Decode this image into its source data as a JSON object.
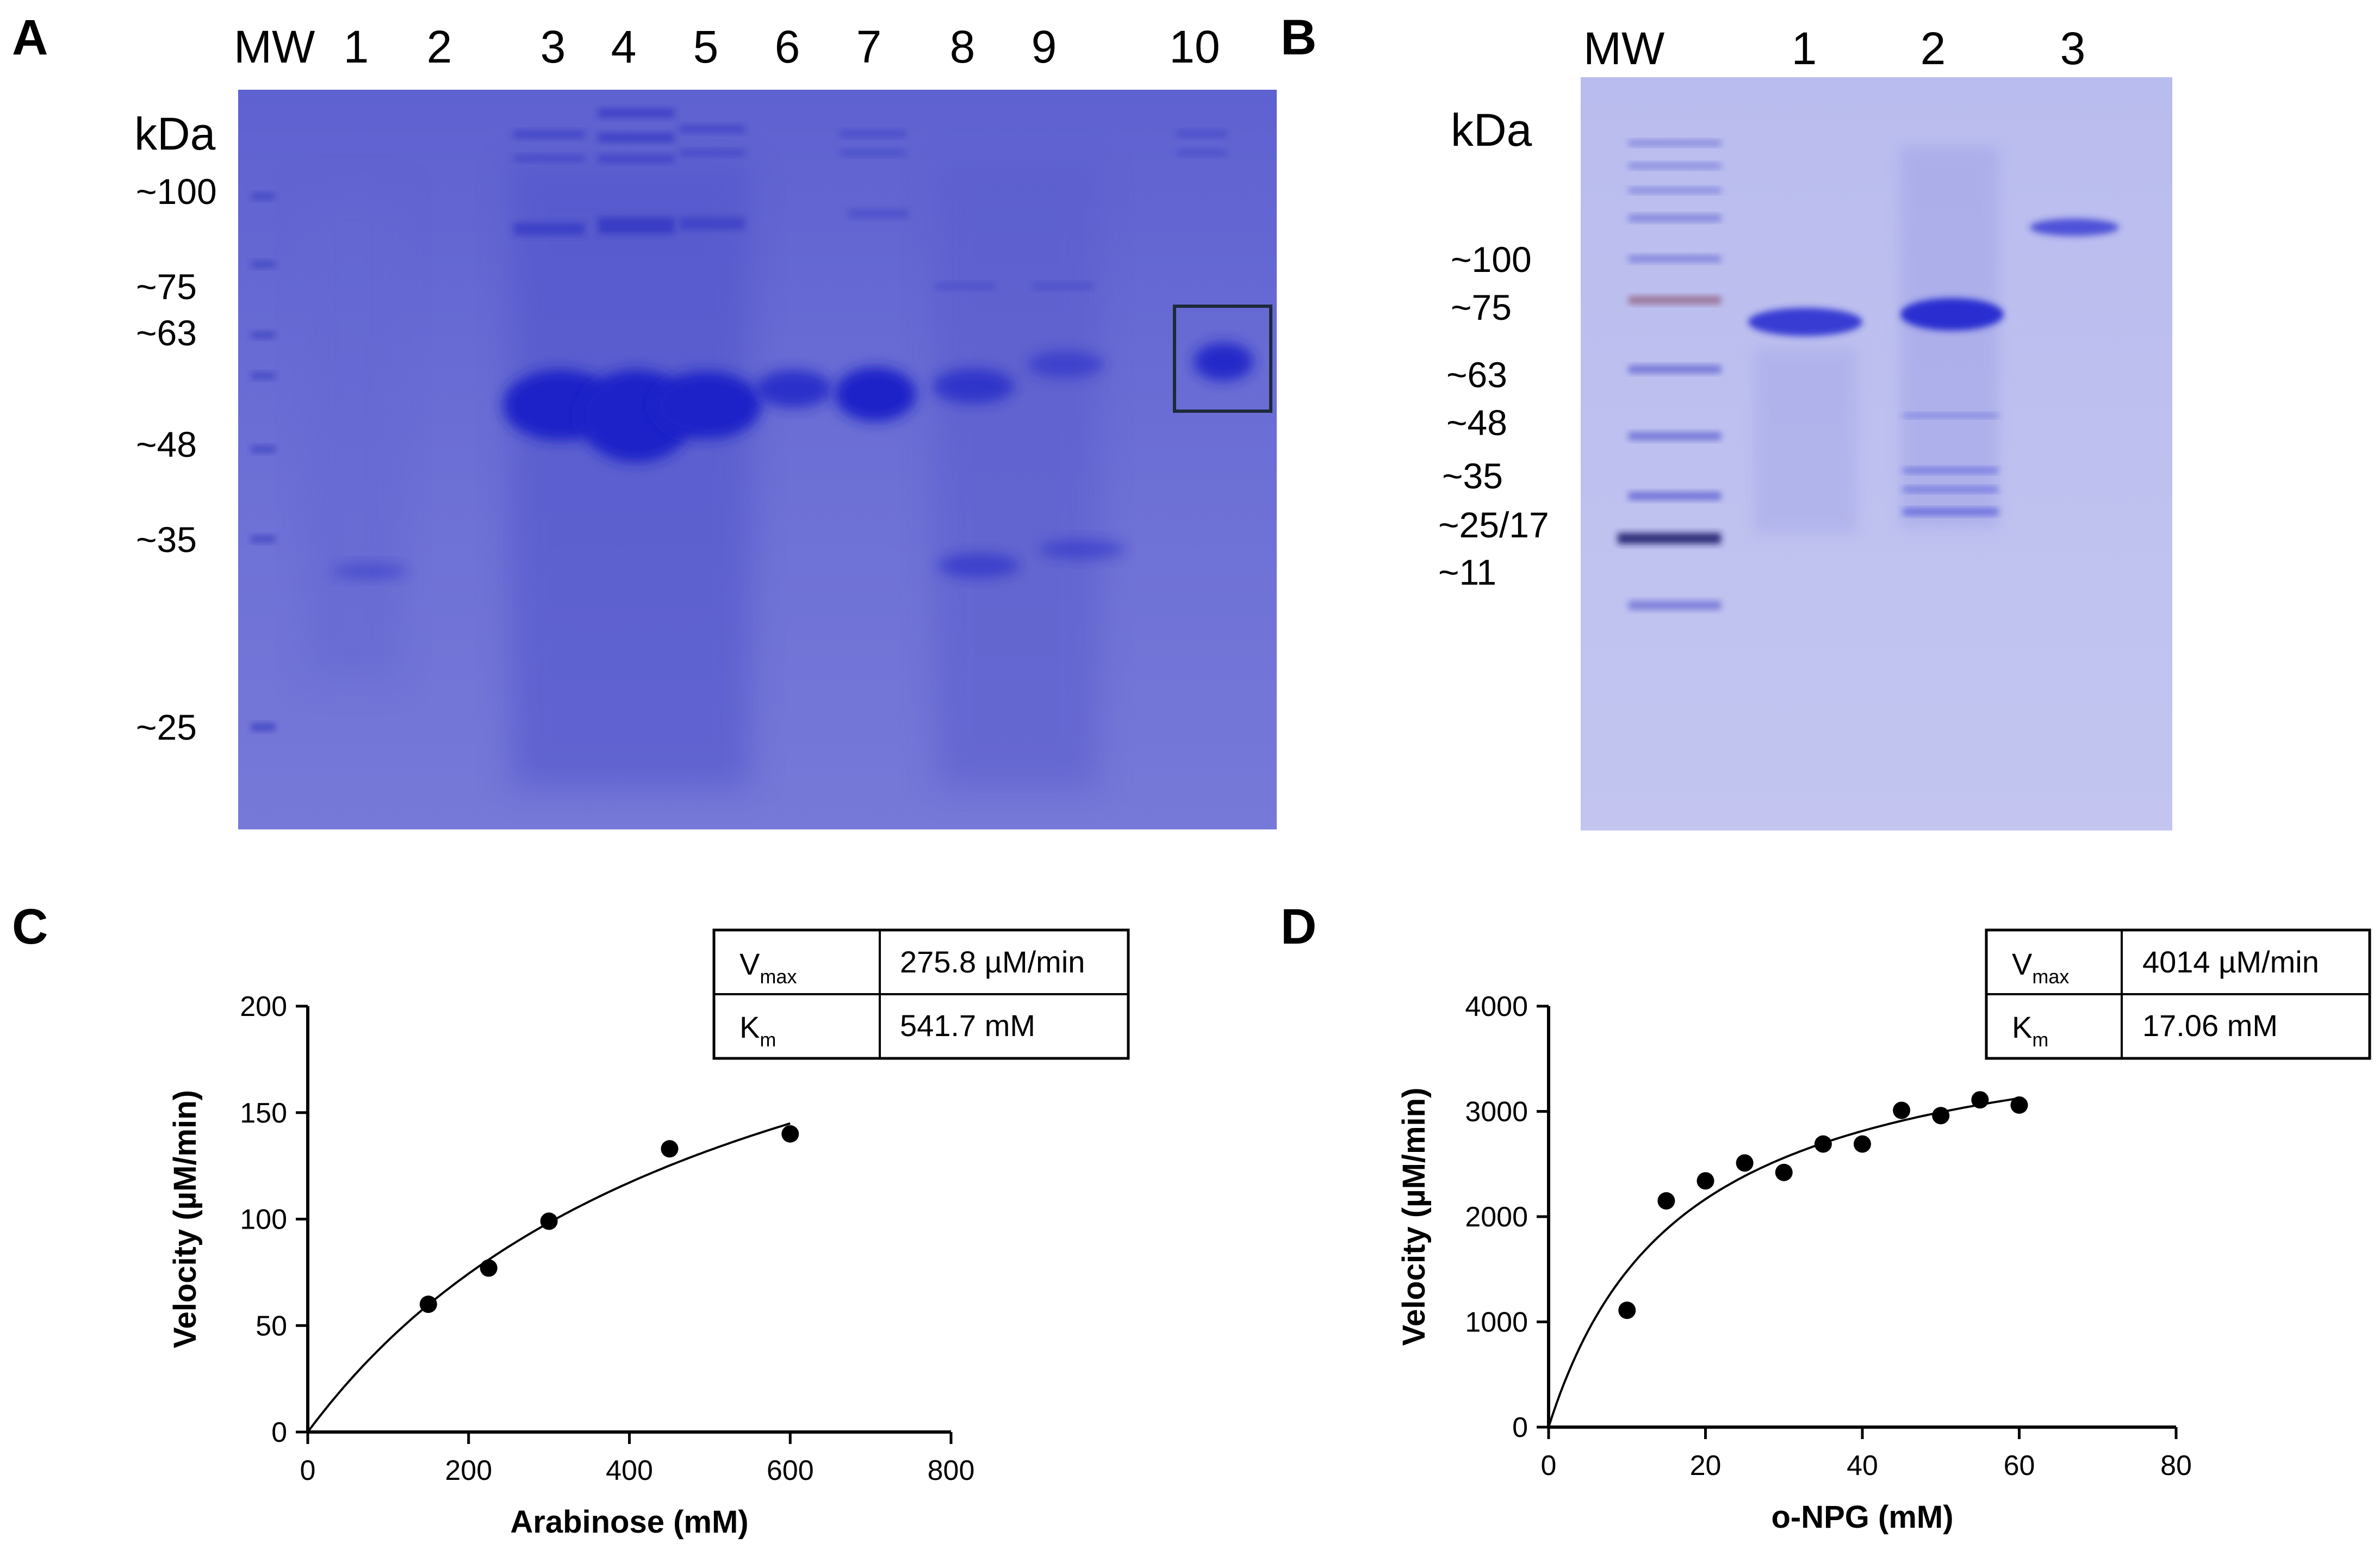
{
  "panels": {
    "A": {
      "letter": "A",
      "lane_labels": [
        "MW",
        "1",
        "2",
        "3",
        "4",
        "5",
        "6",
        "7",
        "8",
        "9",
        "10"
      ],
      "unit_label": "kDa",
      "mw_markers": [
        "~100",
        "~75",
        "~63",
        "~48",
        "~35",
        "~25"
      ]
    },
    "B": {
      "letter": "B",
      "lane_labels": [
        "MW",
        "1",
        "2",
        "3"
      ],
      "unit_label": "kDa",
      "mw_markers": [
        "~100",
        "~75",
        "~63",
        "~48",
        "~35",
        "~25/17",
        "~11"
      ]
    },
    "C": {
      "letter": "C"
    },
    "D": {
      "letter": "D"
    }
  },
  "chart_data": [
    {
      "panel": "C",
      "type": "scatter",
      "xlabel": "Arabinose (mM)",
      "ylabel": "Velocity (µM/min)",
      "xlim": [
        0,
        800
      ],
      "ylim": [
        0,
        200
      ],
      "xticks": [
        0,
        200,
        400,
        600,
        800
      ],
      "yticks": [
        0,
        50,
        100,
        150,
        200
      ],
      "grid": false,
      "x": [
        150,
        225,
        300,
        450,
        600
      ],
      "y": [
        60,
        77,
        99,
        133,
        140
      ],
      "fit": {
        "model": "michaelis-menten",
        "vmax": 275.8,
        "km": 541.7
      },
      "kinetics_table": [
        {
          "label": "V",
          "sub": "max",
          "value": "275.8 µM/min"
        },
        {
          "label": "K",
          "sub": "m",
          "value": "541.7 mM"
        }
      ]
    },
    {
      "panel": "D",
      "type": "scatter",
      "xlabel": "o-NPG (mM)",
      "ylabel": "Velocity (µM/min)",
      "xlim": [
        0,
        80
      ],
      "ylim": [
        0,
        4000
      ],
      "xticks": [
        0,
        20,
        40,
        60,
        80
      ],
      "yticks": [
        0,
        1000,
        2000,
        3000,
        4000
      ],
      "grid": false,
      "x": [
        10,
        15,
        20,
        25,
        30,
        35,
        40,
        45,
        50,
        55,
        60
      ],
      "y": [
        1110,
        2150,
        2340,
        2510,
        2420,
        2690,
        2690,
        3010,
        2960,
        3110,
        3060
      ],
      "fit": {
        "model": "michaelis-menten",
        "vmax": 4014,
        "km": 17.06
      },
      "kinetics_table": [
        {
          "label": "V",
          "sub": "max",
          "value": "4014 µM/min"
        },
        {
          "label": "K",
          "sub": "m",
          "value": "17.06 mM"
        }
      ]
    }
  ],
  "colors": {
    "gel_background": "#6f71d4",
    "band_dark": "#1f22c8",
    "ink": "#000000"
  }
}
